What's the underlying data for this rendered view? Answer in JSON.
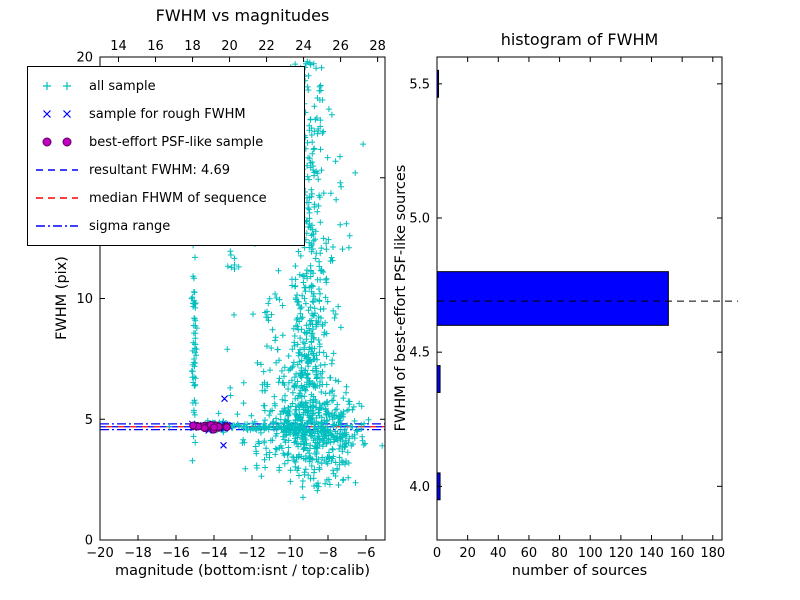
{
  "chart_data": [
    {
      "type": "scatter",
      "title": "FWHM vs magnitudes",
      "xlabel": "magnitude (bottom:isnt / top:calib)",
      "ylabel": "FWHM (pix)",
      "xlim": [
        -20,
        -5
      ],
      "ylim": [
        0,
        20
      ],
      "x_ticks_bottom": [
        -20,
        -18,
        -16,
        -14,
        -12,
        -10,
        -8,
        -6
      ],
      "top_axis": {
        "lim": [
          13.0,
          28.4
        ],
        "ticks": [
          14,
          16,
          18,
          20,
          22,
          24,
          26,
          28
        ]
      },
      "y_ticks": [
        0,
        5,
        10,
        15,
        20
      ],
      "grid": false,
      "resultant_fwhm": 4.69,
      "hlines": [
        {
          "name": "resultant-fwhm-line",
          "y": 4.69,
          "color": "#0000ff",
          "dash": "6 6",
          "offset": 0
        },
        {
          "name": "median-fwhm-line",
          "y": 4.69,
          "color": "#ff0000",
          "dash": "6 6",
          "offset": 6
        },
        {
          "name": "sigma-low-line",
          "y": 4.57,
          "color": "#0000ff",
          "dash": "9 3 2 3",
          "offset": 0
        },
        {
          "name": "sigma-high-line",
          "y": 4.81,
          "color": "#0000ff",
          "dash": "9 3 2 3",
          "offset": 0
        }
      ],
      "series": [
        {
          "name": "all sample",
          "marker": "plus",
          "color": "#00bfbf",
          "clusters": [
            {
              "cx": -8.7,
              "cy": 4.3,
              "sx": 1.05,
              "sy": 0.9,
              "n": 330
            },
            {
              "cx": -9.7,
              "cy": 5.3,
              "sx": 0.9,
              "sy": 1.2,
              "n": 120
            },
            {
              "cx": -8.9,
              "cy": 7.3,
              "sx": 0.55,
              "sy": 1.7,
              "n": 200
            },
            {
              "cx": -8.95,
              "cy": 11.5,
              "sx": 0.4,
              "sy": 2.0,
              "n": 110
            },
            {
              "cx": -8.8,
              "cy": 16.5,
              "sx": 0.45,
              "sy": 2.0,
              "n": 60
            },
            {
              "cx": -9.3,
              "cy": 19.4,
              "sx": 0.5,
              "sy": 0.5,
              "n": 22
            },
            {
              "cx": -11.1,
              "cy": 4.9,
              "sx": 0.75,
              "sy": 1.1,
              "n": 45
            },
            {
              "cx": -7.1,
              "cy": 4.4,
              "sx": 0.55,
              "sy": 0.8,
              "n": 40
            },
            {
              "cx": -11.8,
              "cy": 4.68,
              "sx": 2.6,
              "sy": 0.07,
              "n": 90,
              "dist": "uniform"
            },
            {
              "cx": -15.05,
              "cy": 7.8,
              "sx": 0.07,
              "sy": 1.8,
              "n": 55
            },
            {
              "cx": -13.85,
              "cy": 4.72,
              "sx": 0.5,
              "sy": 0.09,
              "n": 60,
              "dist": "uniform"
            },
            {
              "cx": -12.9,
              "cy": 11.6,
              "sx": 0.3,
              "sy": 0.6,
              "n": 10
            },
            {
              "cx": -10.3,
              "cy": 8.6,
              "sx": 1.1,
              "sy": 2.2,
              "n": 45
            },
            {
              "cx": -8.0,
              "cy": 13.5,
              "sx": 0.7,
              "sy": 3.0,
              "n": 40
            }
          ],
          "points": [
            [
              -6.25,
              4.6
            ],
            [
              -6.1,
              4.82
            ],
            [
              -7.05,
              6.1
            ],
            [
              -7.6,
              2.65
            ],
            [
              -16.35,
              4.7
            ],
            [
              -6.6,
              4.35
            ],
            [
              -12.35,
              2.95
            ],
            [
              -13.3,
              7.9
            ],
            [
              -13.15,
              6.3
            ],
            [
              -15.1,
              12.2
            ],
            [
              -15.0,
              11.7
            ],
            [
              -7.9,
              2.3
            ],
            [
              -6.9,
              5.4
            ]
          ]
        },
        {
          "name": "sample for rough FWHM",
          "marker": "x",
          "color": "#0000ff",
          "clusters": [
            {
              "cx": -14.25,
              "cy": 4.69,
              "sx": 1.05,
              "sy": 0.05,
              "n": 20,
              "dist": "uniform"
            }
          ],
          "points": [
            [
              -13.45,
              5.85
            ],
            [
              -13.5,
              3.92
            ]
          ]
        },
        {
          "name": "best-effort PSF-like sample",
          "marker": "circle",
          "color": "#bf00bf",
          "edge": "#5e005e",
          "clusters": [
            {
              "cx": -14.2,
              "cy": 4.71,
              "sx": 0.95,
              "sy": 0.05,
              "n": 26,
              "dist": "uniform"
            }
          ],
          "points": []
        }
      ],
      "legend": {
        "items": [
          {
            "label": "all sample",
            "kind": "marker",
            "marker": "plus",
            "color": "#00bfbf"
          },
          {
            "label": "sample for rough FWHM",
            "kind": "marker",
            "marker": "x",
            "color": "#0000ff"
          },
          {
            "label": "best-effort PSF-like sample",
            "kind": "marker",
            "marker": "circle",
            "color": "#bf00bf"
          },
          {
            "label": "resultant FWHM: 4.69",
            "kind": "line",
            "dash": "7 5",
            "color": "#0000ff"
          },
          {
            "label": "median FHWM of sequence",
            "kind": "line",
            "dash": "7 5",
            "color": "#ff0000"
          },
          {
            "label": "sigma range",
            "kind": "line",
            "dash": "9 3 2 3",
            "color": "#0000ff"
          }
        ]
      }
    },
    {
      "type": "bar",
      "orientation": "horizontal",
      "title": "histogram of FWHM",
      "xlabel": "number of sources",
      "ylabel": "FWHM of best-effort PSF-like sources",
      "xlim": [
        0,
        186
      ],
      "ylim": [
        3.8,
        5.6
      ],
      "x_ticks": [
        0,
        20,
        40,
        60,
        80,
        100,
        120,
        140,
        160,
        180
      ],
      "y_ticks": [
        4.0,
        4.5,
        5.0,
        5.5
      ],
      "bar_color": "#0000ff",
      "bar_edge": "#000000",
      "bars": [
        {
          "from": 4.6,
          "to": 4.8,
          "count": 151
        },
        {
          "from": 4.35,
          "to": 4.45,
          "count": 2
        },
        {
          "from": 3.95,
          "to": 4.05,
          "count": 2
        },
        {
          "from": 5.45,
          "to": 5.55,
          "count": 1
        }
      ],
      "hline": {
        "y": 4.69,
        "color": "#000000",
        "dash": "7 5"
      }
    }
  ]
}
